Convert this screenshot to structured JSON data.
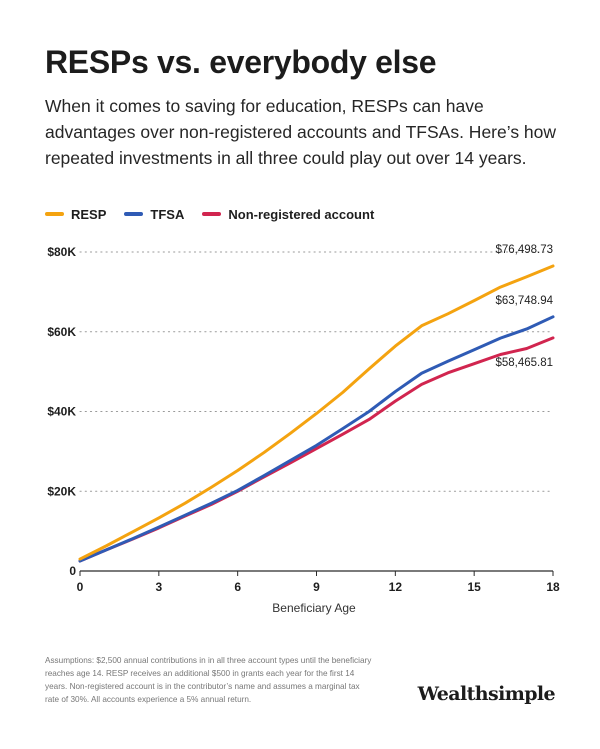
{
  "header": {
    "title": "RESPs vs. everybody else",
    "subtitle": "When it comes to saving for education, RESPs can have advantages over non-registered accounts and TFSAs. Here’s how repeated investments in all three could play out over 14 years."
  },
  "footer": {
    "footnote": "Assumptions: $2,500 annual contributions in in all three account types until the beneficiary reaches age 14. RESP receives an additional $500 in grants each year for the first 14 years. Non-registered account is in the contributor’s name and assumes a marginal tax rate of 30%. All accounts experience a 5% annual return.",
    "brand": "Wealthsimple"
  },
  "chart_data": {
    "type": "line",
    "xlabel": "Beneficiary Age",
    "ylabel": "",
    "xlim": [
      0,
      18
    ],
    "ylim": [
      0,
      80000
    ],
    "x_ticks": [
      0,
      3,
      6,
      9,
      12,
      15,
      18
    ],
    "y_ticks": [
      0,
      20000,
      40000,
      60000,
      80000
    ],
    "y_tick_labels": [
      "0",
      "$20K",
      "$40K",
      "$60K",
      "$80K"
    ],
    "grid": "horizontal dotted",
    "legend_position": "top-left",
    "x": [
      0,
      1,
      2,
      3,
      4,
      5,
      6,
      7,
      8,
      9,
      10,
      11,
      12,
      13,
      14,
      15,
      16,
      17,
      18
    ],
    "series": [
      {
        "name": "RESP",
        "color": "#f4a310",
        "values": [
          3000,
          6300,
          9800,
          13300,
          17000,
          21000,
          25200,
          29700,
          34500,
          39500,
          44800,
          50700,
          56400,
          61500,
          64500,
          67800,
          71200,
          73800,
          76498.73
        ],
        "end_label": "$76,498.73"
      },
      {
        "name": "TFSA",
        "color": "#2f5bb5",
        "values": [
          2500,
          5300,
          8100,
          11000,
          14000,
          17000,
          20200,
          23900,
          27700,
          31500,
          35700,
          40000,
          45000,
          49600,
          52600,
          55500,
          58400,
          60700,
          63748.94
        ],
        "end_label": "$63,748.94"
      },
      {
        "name": "Non-registered account",
        "color": "#d1254f",
        "values": [
          2500,
          5300,
          8000,
          10800,
          13800,
          16700,
          20000,
          23600,
          27100,
          30700,
          34300,
          38000,
          42600,
          46800,
          49700,
          52000,
          54300,
          55800,
          58465.81
        ],
        "end_label": "$58,465.81"
      }
    ]
  }
}
